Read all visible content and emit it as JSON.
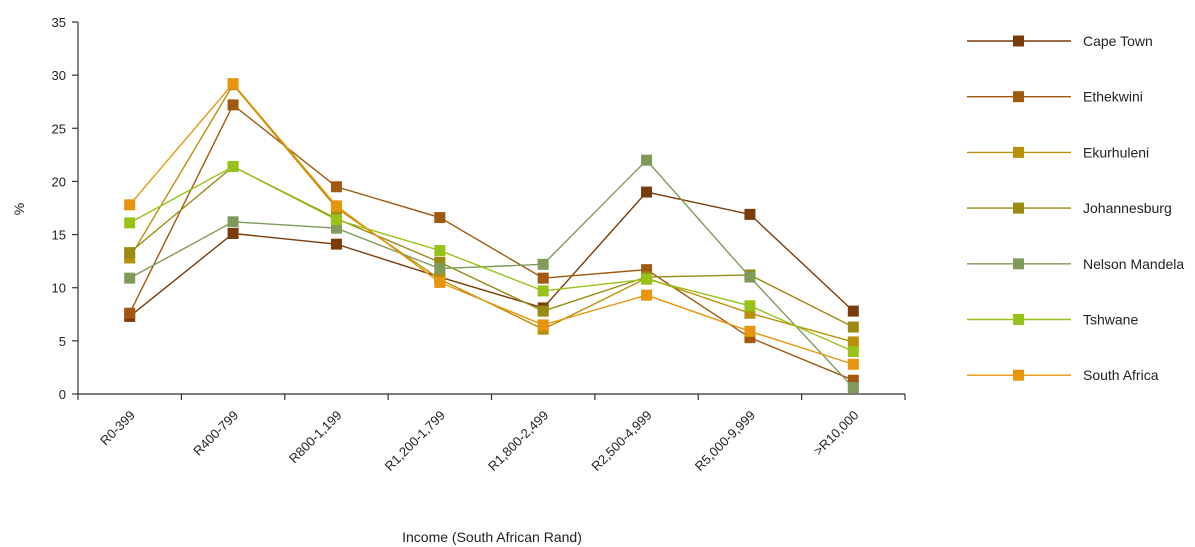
{
  "chart_data": {
    "type": "line",
    "xlabel": "Income (South African Rand)",
    "ylabel": "%",
    "ylim": [
      0,
      35
    ],
    "yticks": [
      0,
      5,
      10,
      15,
      20,
      25,
      30,
      35
    ],
    "grid": false,
    "legend_position": "right",
    "categories": [
      "R0-399",
      "R400-799",
      "R800-1,199",
      "R1,200-1,799",
      "R1,800-2,499",
      "R2,500-4,999",
      "R5,000-9,999",
      ">R10,000"
    ],
    "series": [
      {
        "name": "Cape Town",
        "color": "#7a3c0a",
        "values": [
          7.3,
          15.1,
          14.1,
          11.0,
          8.1,
          19.0,
          16.9,
          7.8
        ]
      },
      {
        "name": "Ethekwini",
        "color": "#a0590f",
        "values": [
          7.6,
          27.2,
          19.5,
          16.6,
          10.9,
          11.7,
          5.3,
          1.3
        ]
      },
      {
        "name": "Ekurhuleni",
        "color": "#b8900a",
        "values": [
          12.8,
          29.1,
          17.5,
          10.8,
          6.1,
          10.9,
          7.6,
          4.9
        ]
      },
      {
        "name": "Johannesburg",
        "color": "#9a8a14",
        "values": [
          13.3,
          21.4,
          16.5,
          12.4,
          7.8,
          11.0,
          11.2,
          6.3
        ]
      },
      {
        "name": "Nelson Mandela",
        "color": "#7f9a5a",
        "values": [
          10.9,
          16.2,
          15.6,
          11.8,
          12.2,
          22.0,
          11.0,
          0.6
        ]
      },
      {
        "name": "Tshwane",
        "color": "#98c21a",
        "values": [
          16.1,
          21.4,
          16.4,
          13.5,
          9.7,
          10.8,
          8.3,
          4.0
        ]
      },
      {
        "name": "South Africa",
        "color": "#e8950e",
        "values": [
          17.8,
          29.2,
          17.7,
          10.5,
          6.5,
          9.3,
          5.9,
          2.8
        ]
      }
    ]
  }
}
